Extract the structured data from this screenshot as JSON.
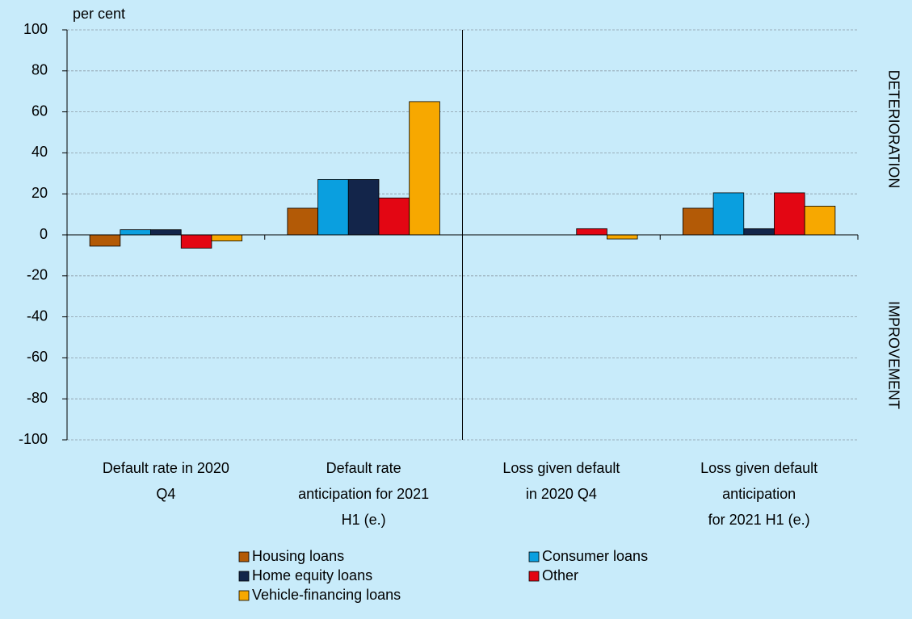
{
  "chart_data": {
    "type": "bar",
    "y_axis_label": "per cent",
    "annotations": [
      "DETERIORATION",
      "IMPROVEMENT"
    ],
    "categories": [
      "Default rate in 2020\nQ4",
      "Default rate\nanticipation for 2021\nH1 (e.)",
      "Loss given default\nin 2020 Q4",
      "Loss given default\nanticipation\nfor 2021 H1 (e.)"
    ],
    "series": [
      {
        "name": "Housing loans",
        "color": "#b35a06",
        "values": [
          -5.5,
          13,
          0,
          13
        ]
      },
      {
        "name": "Consumer loans",
        "color": "#0a9fdf",
        "values": [
          2.5,
          27,
          0,
          20.5
        ]
      },
      {
        "name": "Home equity loans",
        "color": "#13254a",
        "values": [
          2.5,
          27,
          0,
          3
        ]
      },
      {
        "name": "Other",
        "color": "#e30613",
        "values": [
          -6.5,
          18,
          3,
          20.5
        ]
      },
      {
        "name": "Vehicle-financing loans",
        "color": "#f7a800",
        "values": [
          -3,
          65,
          -2,
          14
        ]
      }
    ],
    "ylim": [
      -100,
      100
    ],
    "yticks": [
      -100,
      -80,
      -60,
      -40,
      -20,
      0,
      20,
      40,
      60,
      80,
      100
    ],
    "grid": true
  }
}
